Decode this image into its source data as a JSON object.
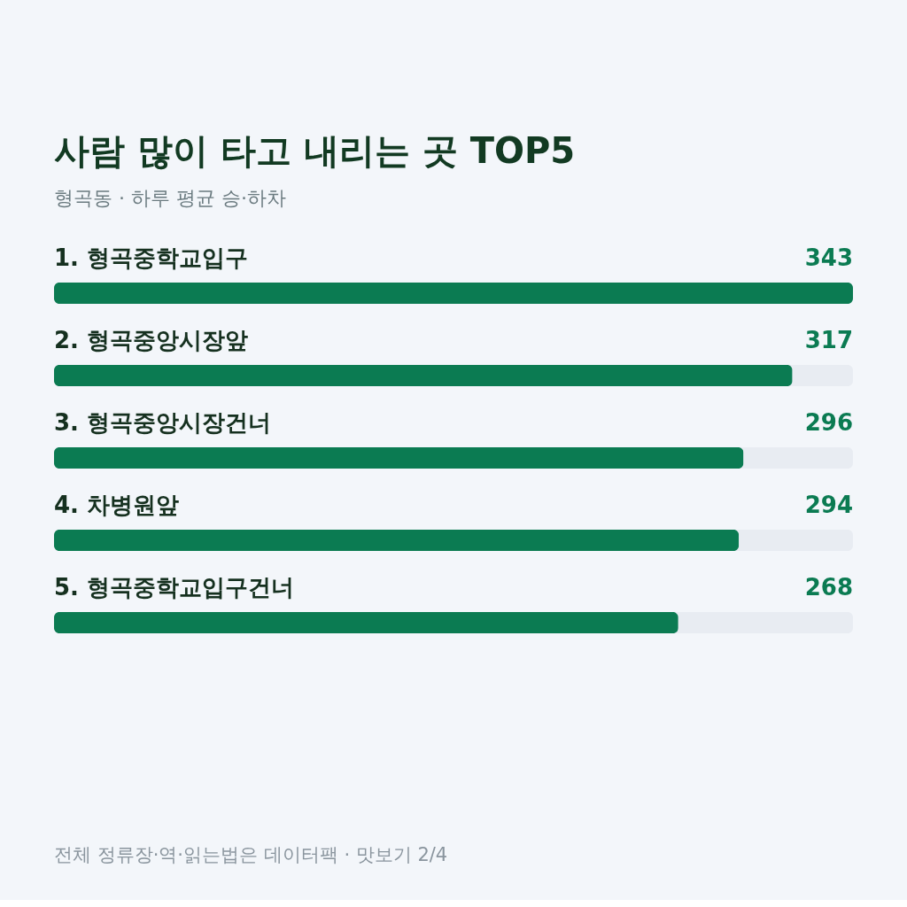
{
  "chart_data": {
    "type": "bar",
    "orientation": "horizontal",
    "title": "사람 많이 타고 내리는 곳 TOP5",
    "subtitle": "형곡동 · 하루 평균 승·하차",
    "categories": [
      "1. 형곡중학교입구",
      "2. 형곡중앙시장앞",
      "3. 형곡중앙시장건너",
      "4. 차병원앞",
      "5. 형곡중학교입구건너"
    ],
    "values": [
      343,
      317,
      296,
      294,
      268
    ],
    "color": "#0b7b52",
    "data_labels": true,
    "tick_labels": "y",
    "annotations": [
      "전체 정류장·역·읽는법은 데이터팩 · 맛보기 2/4"
    ]
  }
}
